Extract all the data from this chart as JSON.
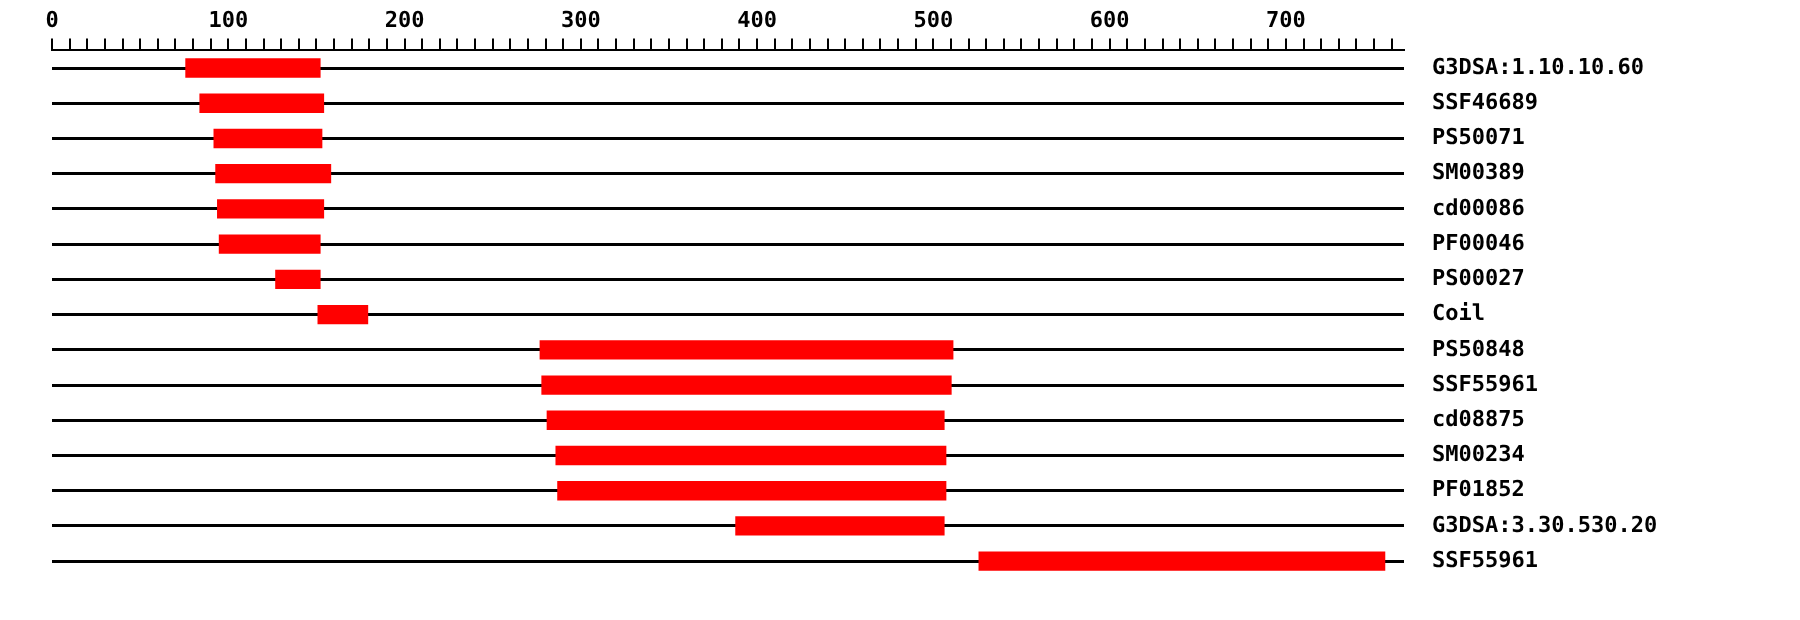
{
  "chart_data": {
    "type": "bar",
    "orientation": "horizontal",
    "categories": [
      "G3DSA:1.10.10.60",
      "SSF46689",
      "PS50071",
      "SM00389",
      "cd00086",
      "PF00046",
      "PS00027",
      "Coil",
      "PS50848",
      "SSF55961",
      "cd08875",
      "SM00234",
      "PF01852",
      "G3DSA:3.30.530.20",
      "SSF55961"
    ],
    "base": [
      76,
      84,
      92,
      93,
      94,
      95,
      127,
      151,
      277,
      278,
      281,
      286,
      287,
      388,
      526
    ],
    "values": [
      76,
      70,
      61,
      65,
      60,
      57,
      25,
      28,
      234,
      232,
      225,
      221,
      220,
      118,
      230
    ],
    "color": "#ff0000",
    "xlim": [
      0,
      767
    ],
    "xticks": [
      0,
      {
        "value": 10,
        "label": null
      },
      {
        "value": 20,
        "label": null
      },
      {
        "value": 30,
        "label": null
      },
      {
        "value": 40,
        "label": null
      },
      {
        "value": 50,
        "label": null
      },
      {
        "value": 60,
        "label": null
      },
      {
        "value": 70,
        "label": null
      },
      {
        "value": 80,
        "label": null
      },
      {
        "value": 90,
        "label": null
      },
      100,
      {
        "value": 110,
        "label": null
      },
      {
        "value": 120,
        "label": null
      },
      {
        "value": 130,
        "label": null
      },
      {
        "value": 140,
        "label": null
      },
      {
        "value": 150,
        "label": null
      },
      {
        "value": 160,
        "label": null
      },
      {
        "value": 170,
        "label": null
      },
      {
        "value": 180,
        "label": null
      },
      {
        "value": 190,
        "label": null
      },
      200,
      {
        "value": 210,
        "label": null
      },
      {
        "value": 220,
        "label": null
      },
      {
        "value": 230,
        "label": null
      },
      {
        "value": 240,
        "label": null
      },
      {
        "value": 250,
        "label": null
      },
      {
        "value": 260,
        "label": null
      },
      {
        "value": 270,
        "label": null
      },
      {
        "value": 280,
        "label": null
      },
      {
        "value": 290,
        "label": null
      },
      300,
      {
        "value": 310,
        "label": null
      },
      {
        "value": 320,
        "label": null
      },
      {
        "value": 330,
        "label": null
      },
      {
        "value": 340,
        "label": null
      },
      {
        "value": 350,
        "label": null
      },
      {
        "value": 360,
        "label": null
      },
      {
        "value": 370,
        "label": null
      },
      {
        "value": 380,
        "label": null
      },
      {
        "value": 390,
        "label": null
      },
      400,
      {
        "value": 410,
        "label": null
      },
      {
        "value": 420,
        "label": null
      },
      {
        "value": 430,
        "label": null
      },
      {
        "value": 440,
        "label": null
      },
      {
        "value": 450,
        "label": null
      },
      {
        "value": 460,
        "label": null
      },
      {
        "value": 470,
        "label": null
      },
      {
        "value": 480,
        "label": null
      },
      {
        "value": 490,
        "label": null
      },
      500,
      {
        "value": 510,
        "label": null
      },
      {
        "value": 520,
        "label": null
      },
      {
        "value": 530,
        "label": null
      },
      {
        "value": 540,
        "label": null
      },
      {
        "value": 550,
        "label": null
      },
      {
        "value": 560,
        "label": null
      },
      {
        "value": 570,
        "label": null
      },
      {
        "value": 580,
        "label": null
      },
      {
        "value": 590,
        "label": null
      },
      600,
      {
        "value": 610,
        "label": null
      },
      {
        "value": 620,
        "label": null
      },
      {
        "value": 630,
        "label": null
      },
      {
        "value": 640,
        "label": null
      },
      {
        "value": 650,
        "label": null
      },
      {
        "value": 660,
        "label": null
      },
      {
        "value": 670,
        "label": null
      },
      {
        "value": 680,
        "label": null
      },
      {
        "value": 690,
        "label": null
      },
      700,
      {
        "value": 710,
        "label": null
      },
      {
        "value": 720,
        "label": null
      },
      {
        "value": 730,
        "label": null
      },
      {
        "value": 740,
        "label": null
      },
      {
        "value": 750,
        "label": null
      },
      {
        "value": 760,
        "label": null
      }
    ],
    "grid": "y",
    "legend": false
  }
}
